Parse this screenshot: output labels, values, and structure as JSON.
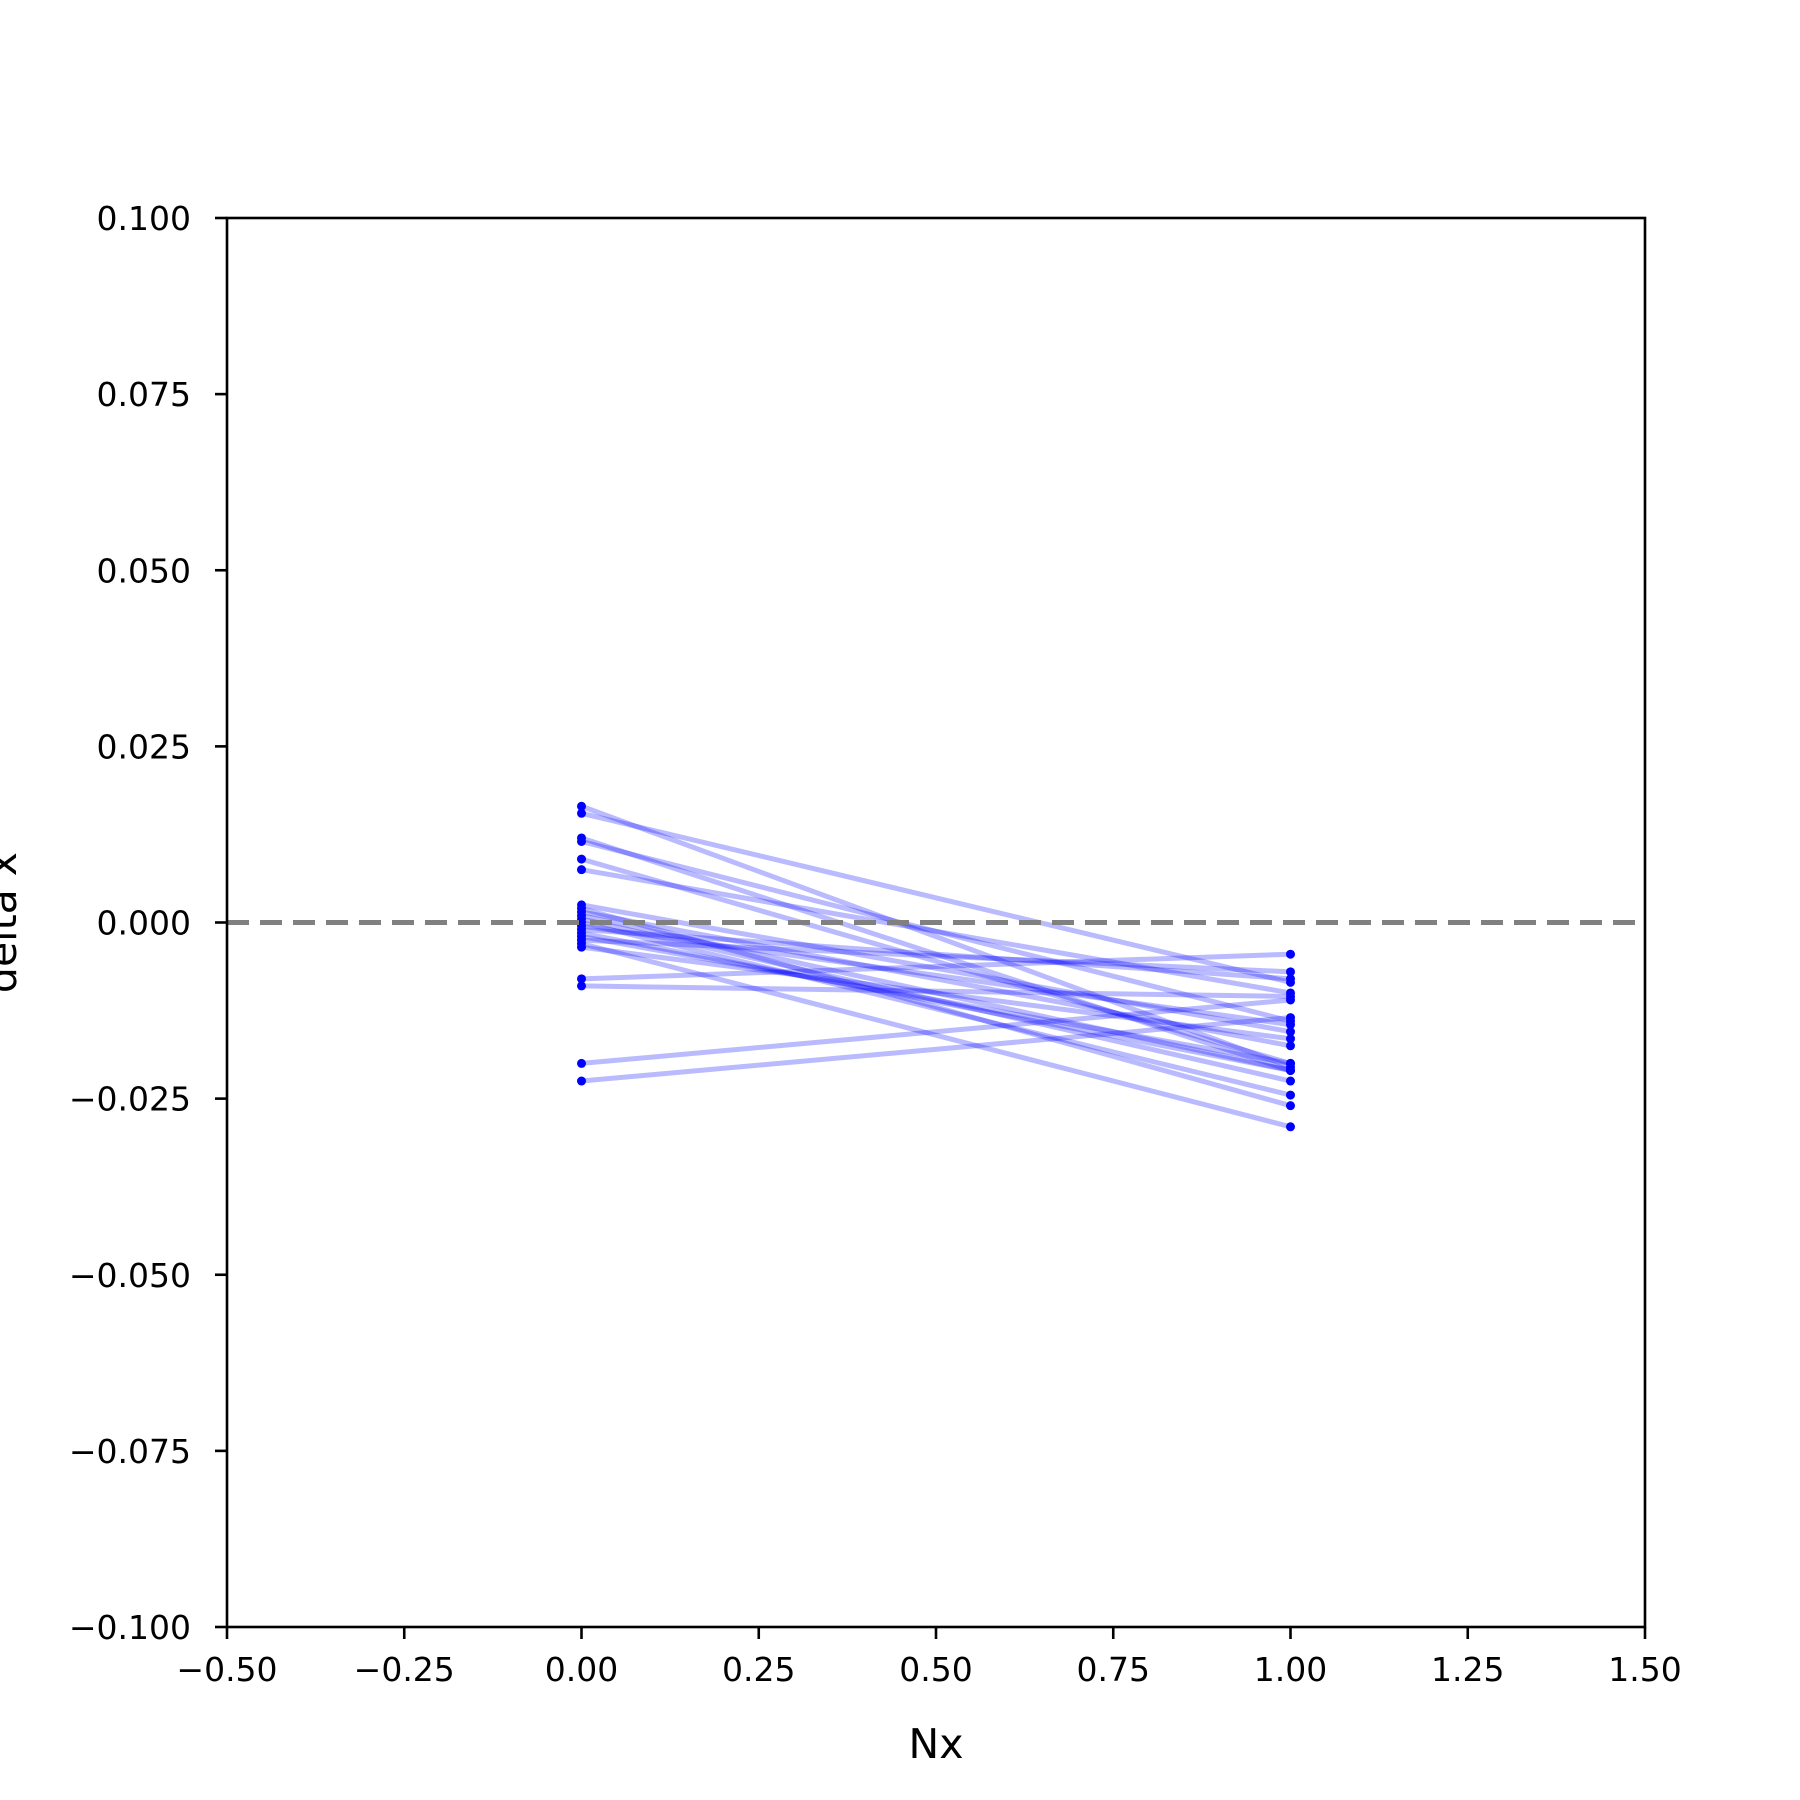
{
  "chart_data": {
    "type": "line",
    "title": "",
    "xlabel": "Nx",
    "ylabel": "delta x",
    "xlim": [
      -0.5,
      1.5
    ],
    "ylim": [
      -0.1,
      0.1
    ],
    "xticks": [
      -0.5,
      -0.25,
      0.0,
      0.25,
      0.5,
      0.75,
      1.0,
      1.25,
      1.5
    ],
    "xtick_labels": [
      "−0.50",
      "−0.25",
      "0.00",
      "0.25",
      "0.50",
      "0.75",
      "1.00",
      "1.25",
      "1.50"
    ],
    "yticks": [
      -0.1,
      -0.075,
      -0.05,
      -0.025,
      0.0,
      0.025,
      0.05,
      0.075,
      0.1
    ],
    "ytick_labels": [
      "−0.100",
      "−0.075",
      "−0.050",
      "−0.025",
      "0.000",
      "0.025",
      "0.050",
      "0.075",
      "0.100"
    ],
    "grid": false,
    "reference_line": {
      "y": 0.0,
      "style": "dashed",
      "color": "#808080"
    },
    "line_color": "#0000ff",
    "line_alpha": 0.27,
    "point_color": "#0000ff",
    "series": [
      {
        "x": [
          0,
          1
        ],
        "y": [
          0.0165,
          -0.0205
        ]
      },
      {
        "x": [
          0,
          1
        ],
        "y": [
          0.0155,
          -0.0085
        ]
      },
      {
        "x": [
          0,
          1
        ],
        "y": [
          0.012,
          -0.021
        ]
      },
      {
        "x": [
          0,
          1
        ],
        "y": [
          0.0115,
          -0.014
        ]
      },
      {
        "x": [
          0,
          1
        ],
        "y": [
          0.009,
          -0.02
        ]
      },
      {
        "x": [
          0,
          1
        ],
        "y": [
          0.0075,
          -0.01
        ]
      },
      {
        "x": [
          0,
          1
        ],
        "y": [
          0.0025,
          -0.0155
        ]
      },
      {
        "x": [
          0,
          1
        ],
        "y": [
          0.0015,
          -0.0175
        ]
      },
      {
        "x": [
          0,
          1
        ],
        "y": [
          0.001,
          -0.021
        ]
      },
      {
        "x": [
          0,
          1
        ],
        "y": [
          0.0005,
          -0.0225
        ]
      },
      {
        "x": [
          0,
          1
        ],
        "y": [
          0.0,
          -0.0245
        ]
      },
      {
        "x": [
          0,
          1
        ],
        "y": [
          -0.0005,
          -0.0145
        ]
      },
      {
        "x": [
          0,
          1
        ],
        "y": [
          -0.0015,
          -0.021
        ]
      },
      {
        "x": [
          0,
          1
        ],
        "y": [
          -0.002,
          -0.02
        ]
      },
      {
        "x": [
          0,
          1
        ],
        "y": [
          -0.0025,
          -0.007
        ]
      },
      {
        "x": [
          0,
          1
        ],
        "y": [
          -0.003,
          -0.029
        ]
      },
      {
        "x": [
          0,
          1
        ],
        "y": [
          -0.0035,
          -0.0165
        ]
      },
      {
        "x": [
          0,
          1
        ],
        "y": [
          -0.008,
          -0.0045
        ]
      },
      {
        "x": [
          0,
          1
        ],
        "y": [
          -0.009,
          -0.0105
        ]
      },
      {
        "x": [
          0,
          1
        ],
        "y": [
          -0.02,
          -0.011
        ]
      },
      {
        "x": [
          0,
          1
        ],
        "y": [
          -0.0225,
          -0.0135
        ]
      },
      {
        "x": [
          0,
          1
        ],
        "y": [
          0.002,
          -0.026
        ]
      },
      {
        "x": [
          0,
          1
        ],
        "y": [
          -0.001,
          -0.008
        ]
      }
    ]
  }
}
